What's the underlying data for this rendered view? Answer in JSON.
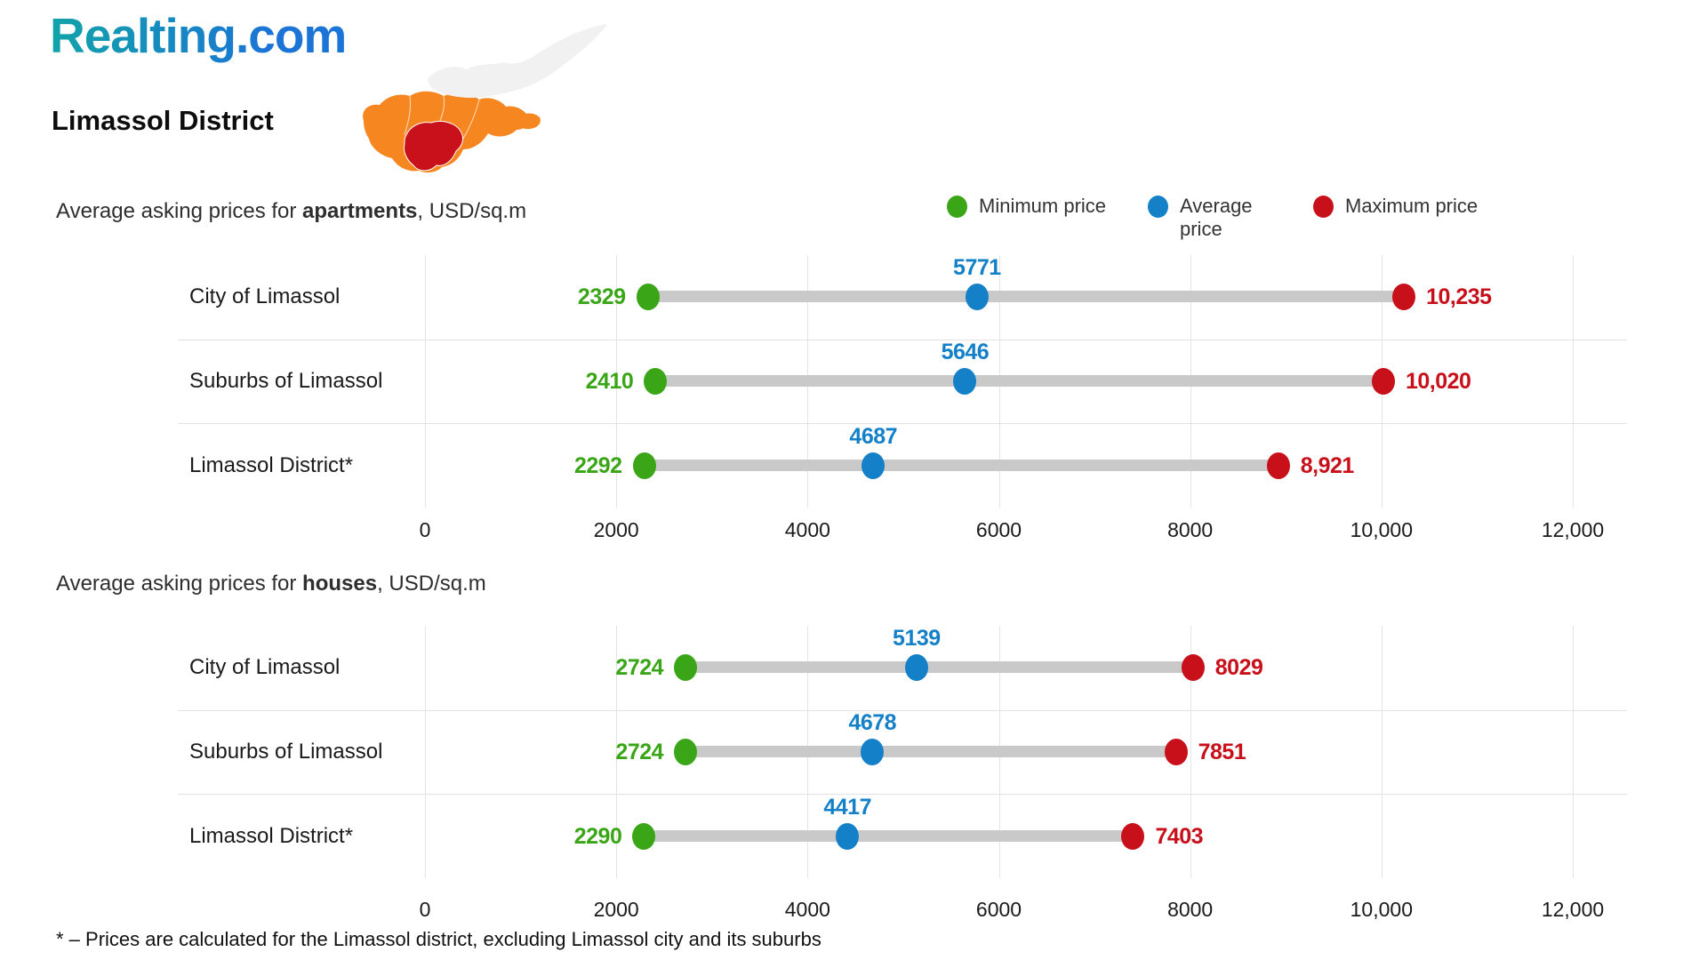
{
  "logo": {
    "text": "Realting.com"
  },
  "header": {
    "title": "Limassol District"
  },
  "legend": {
    "items": [
      {
        "label": "Minimum price",
        "color": "#3aa617"
      },
      {
        "label": "Average price",
        "color": "#1480c8"
      },
      {
        "label": "Maximum price",
        "color": "#c8101a"
      }
    ]
  },
  "footnote": "* – Prices are calculated for the Limassol district, excluding Limassol city and its suburbs",
  "colors": {
    "bar_gray": "#c9c9c9",
    "grid_gray": "#e4e4e4",
    "min_green": "#3aa617",
    "avg_blue": "#1480c8",
    "max_red": "#c8101a",
    "map_orange": "#f6861f",
    "map_red": "#c9111c",
    "map_gray": "#f1f1f2",
    "logo_teal": "#12a3a8",
    "logo_blue": "#1b74d6"
  },
  "chart_data": [
    {
      "type": "dumbbell",
      "title": "Average asking prices for apartments, USD/sq.m",
      "title_parts": {
        "prefix": "Average asking prices for ",
        "bold": "apartments",
        "suffix": ", USD/sq.m"
      },
      "categories": [
        "City of Limassol",
        "Suburbs of Limassol",
        "Limassol District*"
      ],
      "series": [
        {
          "name": "Minimum price",
          "color": "#3aa617",
          "values": [
            2329,
            2410,
            2292
          ],
          "labels": [
            "2329",
            "2410",
            "2292"
          ]
        },
        {
          "name": "Average price",
          "color": "#1480c8",
          "values": [
            5771,
            5646,
            4687
          ],
          "labels": [
            "5771",
            "5646",
            "4687"
          ]
        },
        {
          "name": "Maximum price",
          "color": "#c8101a",
          "values": [
            10235,
            10020,
            8921
          ],
          "labels": [
            "10,235",
            "10,020",
            "8,921"
          ]
        }
      ],
      "x_ticks": {
        "values": [
          0,
          2000,
          4000,
          6000,
          8000,
          10000,
          12000
        ],
        "labels": [
          "0",
          "2000",
          "4000",
          "6000",
          "8000",
          "10,000",
          "12,000"
        ]
      },
      "xlim": [
        0,
        12000
      ],
      "legend_position": "top-right",
      "grid": true
    },
    {
      "type": "dumbbell",
      "title": "Average asking prices for houses, USD/sq.m",
      "title_parts": {
        "prefix": "Average asking prices for ",
        "bold": "houses",
        "suffix": ", USD/sq.m"
      },
      "categories": [
        "City of Limassol",
        "Suburbs of Limassol",
        "Limassol District*"
      ],
      "series": [
        {
          "name": "Minimum price",
          "color": "#3aa617",
          "values": [
            2724,
            2724,
            2290
          ],
          "labels": [
            "2724",
            "2724",
            "2290"
          ]
        },
        {
          "name": "Average price",
          "color": "#1480c8",
          "values": [
            5139,
            4678,
            4417
          ],
          "labels": [
            "5139",
            "4678",
            "4417"
          ]
        },
        {
          "name": "Maximum price",
          "color": "#c8101a",
          "values": [
            8029,
            7851,
            7403
          ],
          "labels": [
            "8029",
            "7851",
            "7403"
          ]
        }
      ],
      "x_ticks": {
        "values": [
          0,
          2000,
          4000,
          6000,
          8000,
          10000,
          12000
        ],
        "labels": [
          "0",
          "2000",
          "4000",
          "6000",
          "8000",
          "10,000",
          "12,000"
        ]
      },
      "xlim": [
        0,
        12000
      ],
      "legend_position": "top-right",
      "grid": true
    }
  ]
}
